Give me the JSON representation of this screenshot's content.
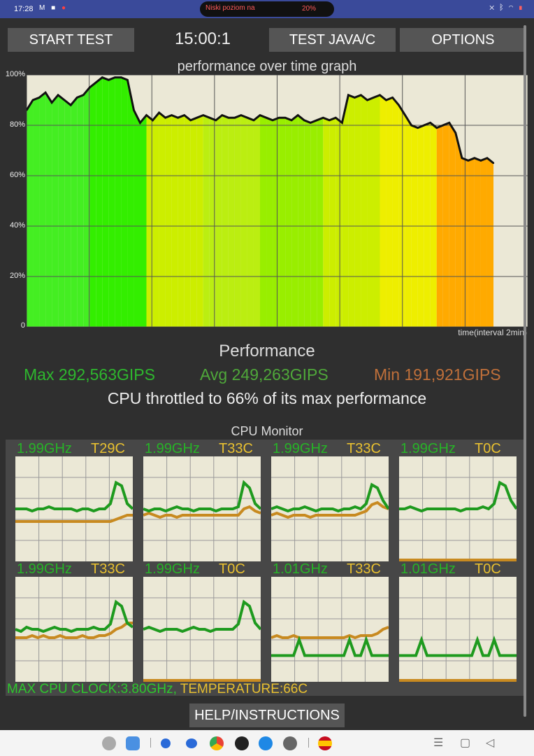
{
  "status_bar": {
    "time": "17:28",
    "notification_icons": [
      "gmail-icon",
      "app-icon",
      "app-icon"
    ],
    "pill_message": "Niski poziom na",
    "pill_percent": "20%",
    "right_icons": [
      "mute-icon",
      "bluetooth-icon",
      "wifi-icon",
      "battery-icon"
    ]
  },
  "toolbar": {
    "start_label": "START TEST",
    "timer": "15:00:1",
    "java_label": "TEST JAVA/C",
    "options_label": "OPTIONS"
  },
  "graph": {
    "title": "performance over time graph",
    "y_ticks": [
      "100%",
      "80%",
      "60%",
      "40%",
      "20%",
      "0"
    ],
    "x_label": "time(interval 2min)"
  },
  "chart_data": {
    "type": "line",
    "title": "performance over time graph",
    "xlabel": "time(interval 2min)",
    "ylabel": "",
    "ylim": [
      0,
      100
    ],
    "grid": true,
    "x": [
      0,
      1,
      2,
      3,
      4,
      5,
      6,
      7,
      8,
      9,
      10,
      11,
      12,
      13,
      14,
      15,
      16,
      17,
      18,
      19,
      20,
      21,
      22,
      23,
      24,
      25,
      26,
      27,
      28,
      29,
      30,
      31,
      32,
      33,
      34,
      35,
      36,
      37,
      38,
      39,
      40,
      41,
      42,
      43,
      44,
      45,
      46,
      47,
      48,
      49,
      50,
      51,
      52,
      53,
      54,
      55,
      56,
      57,
      58,
      59,
      60,
      61,
      62,
      63,
      64,
      65,
      66,
      67,
      68,
      69,
      70,
      71,
      72,
      73,
      74
    ],
    "series": [
      {
        "values": [
          86,
          90,
          91,
          93,
          89,
          92,
          90,
          88,
          91,
          92,
          95,
          97,
          99,
          98,
          99,
          99,
          98,
          86,
          81,
          84,
          82,
          85,
          83,
          84,
          83,
          84,
          82,
          83,
          84,
          83,
          82,
          84,
          83,
          83,
          84,
          83,
          82,
          84,
          83,
          82,
          83,
          83,
          82,
          84,
          82,
          81,
          82,
          83,
          82,
          83,
          81,
          92,
          91,
          92,
          90,
          91,
          92,
          90,
          91,
          88,
          84,
          80,
          79,
          80,
          81,
          79,
          80,
          81,
          77,
          67,
          66,
          67,
          66,
          67,
          65
        ]
      }
    ],
    "band_colors": [
      "#44ee22",
      "#33ee00",
      "#ccee00",
      "#bbee11",
      "#99ee00",
      "#ccee00",
      "#eeee00",
      "#ffaa00"
    ]
  },
  "performance": {
    "title": "Performance",
    "max": "Max 292,563GIPS",
    "avg": "Avg 249,263GIPS",
    "min": "Min 191,921GIPS",
    "throttle": "CPU throttled to 66% of its max performance"
  },
  "cpu_monitor": {
    "title": "CPU Monitor",
    "cores": [
      {
        "freq": "1.99GHz",
        "temp": "T29C",
        "cpu": [
          50,
          50,
          50,
          48,
          50,
          50,
          52,
          50,
          50,
          50,
          50,
          48,
          50,
          50,
          48,
          50,
          50,
          55,
          75,
          72,
          55,
          50
        ],
        "temp_line": [
          38,
          38,
          38,
          38,
          38,
          38,
          38,
          38,
          38,
          38,
          38,
          38,
          38,
          38,
          38,
          38,
          38,
          38,
          40,
          42,
          44,
          44
        ]
      },
      {
        "freq": "1.99GHz",
        "temp": "T33C",
        "cpu": [
          50,
          48,
          50,
          50,
          48,
          50,
          52,
          50,
          50,
          48,
          50,
          50,
          50,
          48,
          50,
          50,
          50,
          52,
          75,
          70,
          55,
          50
        ],
        "temp_line": [
          44,
          46,
          44,
          42,
          44,
          44,
          42,
          44,
          44,
          44,
          44,
          44,
          44,
          44,
          44,
          44,
          44,
          44,
          50,
          52,
          48,
          46
        ]
      },
      {
        "freq": "1.99GHz",
        "temp": "T33C",
        "cpu": [
          50,
          52,
          50,
          48,
          50,
          50,
          52,
          50,
          48,
          50,
          50,
          50,
          48,
          50,
          50,
          52,
          50,
          55,
          73,
          70,
          58,
          50
        ],
        "temp_line": [
          44,
          46,
          44,
          42,
          44,
          44,
          44,
          42,
          44,
          44,
          44,
          44,
          44,
          44,
          44,
          44,
          46,
          48,
          54,
          56,
          52,
          50
        ]
      },
      {
        "freq": "1.99GHz",
        "temp": "T0C",
        "cpu": [
          50,
          50,
          52,
          50,
          48,
          50,
          50,
          50,
          50,
          50,
          50,
          48,
          50,
          50,
          50,
          52,
          50,
          55,
          75,
          72,
          58,
          50
        ],
        "temp_line": [
          0,
          0,
          0,
          0,
          0,
          0,
          0,
          0,
          0,
          0,
          0,
          0,
          0,
          0,
          0,
          0,
          0,
          0,
          0,
          0,
          0,
          0
        ]
      },
      {
        "freq": "1.99GHz",
        "temp": "T33C",
        "cpu": [
          50,
          48,
          52,
          50,
          50,
          48,
          50,
          52,
          50,
          50,
          48,
          50,
          50,
          50,
          52,
          50,
          50,
          55,
          76,
          72,
          56,
          52
        ],
        "temp_line": [
          42,
          42,
          42,
          44,
          42,
          44,
          42,
          42,
          44,
          42,
          42,
          42,
          44,
          42,
          42,
          44,
          44,
          46,
          50,
          52,
          56,
          56
        ]
      },
      {
        "freq": "1.99GHz",
        "temp": "T0C",
        "cpu": [
          50,
          52,
          50,
          48,
          50,
          50,
          50,
          48,
          50,
          52,
          50,
          50,
          48,
          50,
          50,
          50,
          50,
          55,
          76,
          72,
          56,
          50
        ],
        "temp_line": [
          0,
          0,
          0,
          0,
          0,
          0,
          0,
          0,
          0,
          0,
          0,
          0,
          0,
          0,
          0,
          0,
          0,
          0,
          0,
          0,
          0,
          0
        ]
      },
      {
        "freq": "1.01GHz",
        "temp": "T33C",
        "cpu": [
          25,
          25,
          25,
          25,
          25,
          40,
          25,
          25,
          25,
          25,
          25,
          25,
          25,
          25,
          40,
          25,
          25,
          40,
          25,
          25,
          25,
          25
        ],
        "temp_line": [
          42,
          44,
          42,
          42,
          44,
          42,
          42,
          42,
          42,
          42,
          42,
          42,
          42,
          42,
          44,
          42,
          44,
          44,
          44,
          46,
          50,
          52
        ]
      },
      {
        "freq": "1.01GHz",
        "temp": "T0C",
        "cpu": [
          25,
          25,
          25,
          25,
          40,
          25,
          25,
          25,
          25,
          25,
          25,
          25,
          25,
          25,
          40,
          25,
          25,
          40,
          25,
          25,
          25,
          25
        ],
        "temp_line": [
          0,
          0,
          0,
          0,
          0,
          0,
          0,
          0,
          0,
          0,
          0,
          0,
          0,
          0,
          0,
          0,
          0,
          0,
          0,
          0,
          0,
          0
        ]
      }
    ],
    "footer_clock": "MAX CPU CLOCK:3.80GHz,",
    "footer_temp": "TEMPERATURE:66C"
  },
  "help_label": "HELP/INSTRUCTIONS",
  "dock": {
    "icons": [
      "apps-icon",
      "files-icon",
      "phone-icon",
      "messages-icon",
      "chrome-icon",
      "camera-icon",
      "browser-icon",
      "settings-icon",
      "flag-app-icon"
    ]
  },
  "nav": {
    "icons": [
      "recents-icon",
      "home-icon",
      "back-icon"
    ]
  },
  "colors": {
    "max": "#2eb82e",
    "avg": "#4fa83a",
    "min": "#c0703a",
    "cpu_line": "#1e9a1e",
    "temp_line": "#c88a20"
  }
}
